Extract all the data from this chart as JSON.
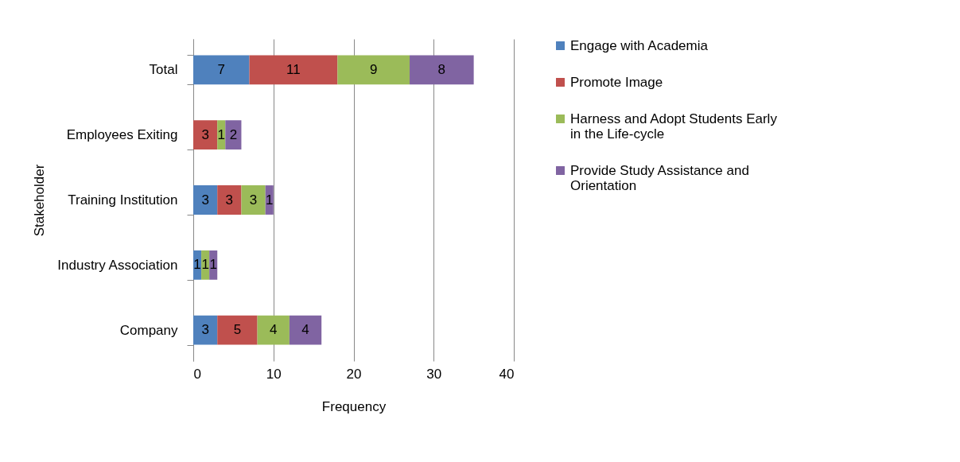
{
  "chart_data": {
    "type": "bar",
    "orientation": "horizontal",
    "stacked": true,
    "xlabel": "Frequency",
    "ylabel": "Stakeholder",
    "categories": [
      "Total",
      "Employees Exiting",
      "Training Institution",
      "Industry Association",
      "Company"
    ],
    "series": [
      {
        "name": "Engage with Academia",
        "color": "#4f81bd",
        "values": [
          7,
          null,
          3,
          1,
          3
        ]
      },
      {
        "name": "Promote Image",
        "color": "#c0504d",
        "values": [
          11,
          3,
          3,
          null,
          5
        ]
      },
      {
        "name": "Harness and Adopt Students Early in the Life-cycle",
        "color": "#9bbb59",
        "values": [
          9,
          1,
          3,
          1,
          4
        ]
      },
      {
        "name": "Provide Study Assistance and Orientation",
        "color": "#8064a2",
        "values": [
          8,
          2,
          1,
          1,
          4
        ]
      }
    ],
    "xlim": [
      0,
      40
    ],
    "xticks": [
      0,
      10,
      20,
      30,
      40
    ],
    "grid": "x",
    "legend": "right",
    "data_labels": true
  }
}
